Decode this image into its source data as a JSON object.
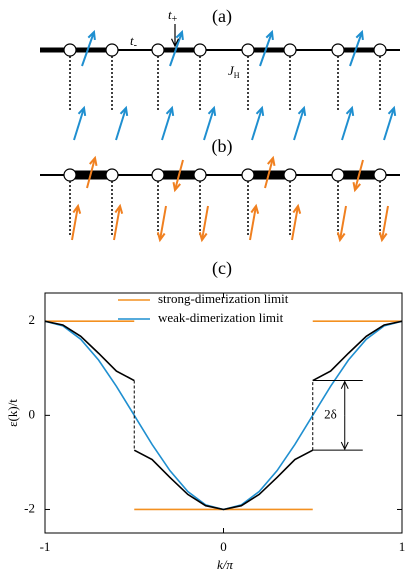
{
  "schematic": {
    "panel_a": "(a)",
    "panel_b": "(b)",
    "t_plus": {
      "base": "t",
      "sub": "+"
    },
    "t_minus": {
      "base": "t",
      "sub": "-"
    },
    "j_h": {
      "base": "J",
      "sub": "H"
    }
  },
  "chart_data": {
    "type": "line",
    "panel_label": "(c)",
    "x_label": "k/π",
    "y_label": "ε(k)/t",
    "xlim": [
      -1,
      1
    ],
    "ylim": [
      -2.5,
      2.6
    ],
    "xticks": [
      -1,
      0,
      1
    ],
    "yticks": [
      -2,
      0,
      2
    ],
    "annotation": "2δ",
    "legend": "top-right",
    "series": [
      {
        "name": "strong-dimerization limit",
        "color": "#f39020",
        "x": [
          -1,
          -0.5,
          -0.5,
          -0.5,
          0.5,
          0.5,
          0.5,
          1
        ],
        "values": [
          2,
          2,
          null,
          -2,
          -2,
          null,
          2,
          2
        ]
      },
      {
        "name": "weak-dimerization limit",
        "color": "#1f8fd0",
        "x": [
          -1,
          -0.9,
          -0.8,
          -0.7,
          -0.6,
          -0.5,
          -0.4,
          -0.3,
          -0.2,
          -0.1,
          0,
          0.1,
          0.2,
          0.3,
          0.4,
          0.5,
          0.6,
          0.7,
          0.8,
          0.9,
          1
        ],
        "values": [
          2,
          1.902,
          1.618,
          1.176,
          0.618,
          0,
          -0.618,
          -1.176,
          -1.618,
          -1.902,
          -2,
          -1.902,
          -1.618,
          -1.176,
          -0.618,
          0,
          0.618,
          1.176,
          1.618,
          1.902,
          2
        ]
      },
      {
        "color": "#000000",
        "x": [
          -1,
          -0.9,
          -0.8,
          -0.7,
          -0.6,
          -0.5,
          -0.5,
          -0.5,
          -0.4,
          -0.3,
          -0.2,
          -0.1,
          0,
          0.1,
          0.2,
          0.3,
          0.4,
          0.5,
          0.5,
          0.5,
          0.6,
          0.7,
          0.8,
          0.9,
          1
        ],
        "values": [
          2,
          1.92,
          1.68,
          1.32,
          0.94,
          0.74,
          null,
          -0.74,
          -0.94,
          -1.32,
          -1.68,
          -1.92,
          -2,
          -1.92,
          -1.68,
          -1.32,
          -0.94,
          -0.74,
          null,
          0.74,
          0.94,
          1.32,
          1.68,
          1.92,
          2
        ]
      }
    ]
  }
}
